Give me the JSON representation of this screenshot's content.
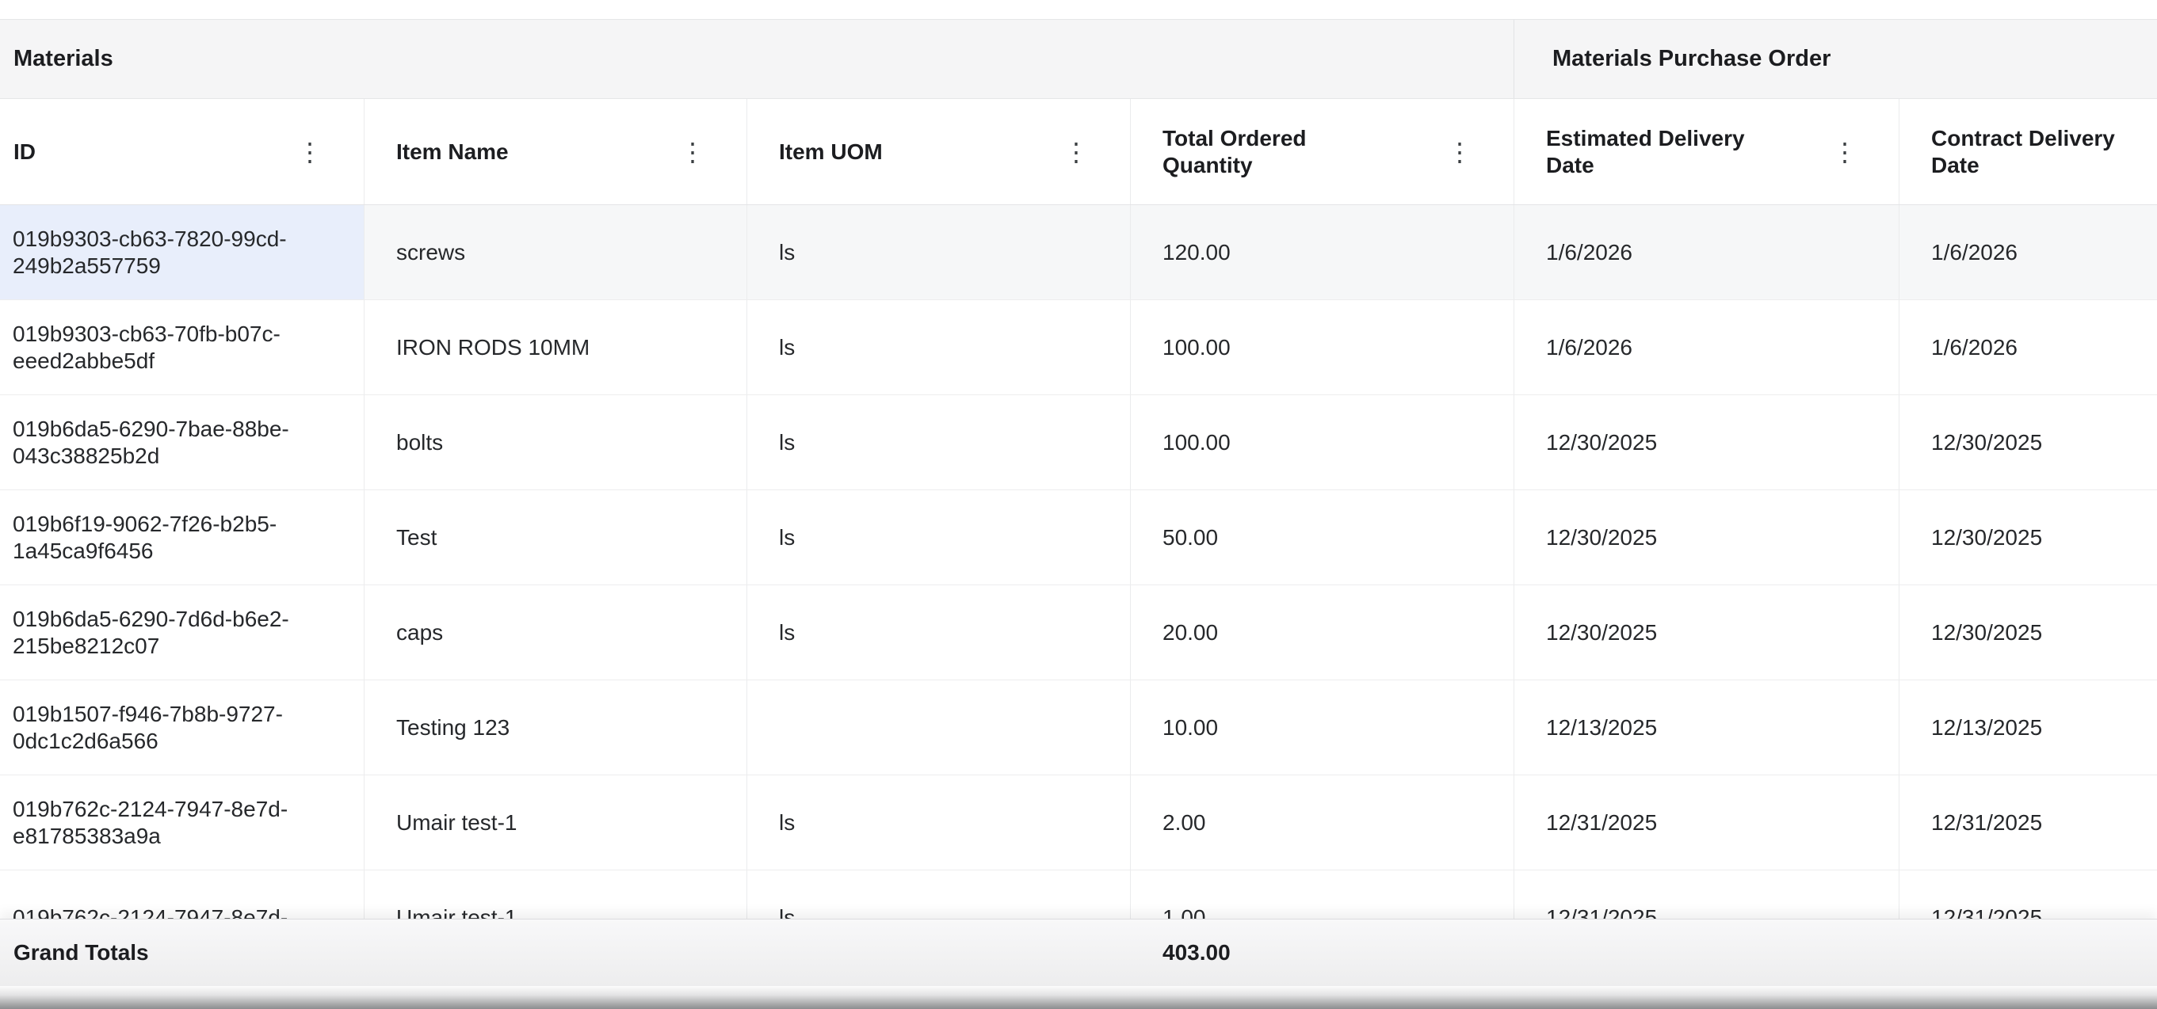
{
  "group_headers": {
    "materials": "Materials",
    "purchase_order": "Materials Purchase Order"
  },
  "icons": {
    "column_menu": "⋮"
  },
  "columns": [
    {
      "key": "id",
      "label": "ID",
      "menu": true
    },
    {
      "key": "item_name",
      "label": "Item Name",
      "menu": true
    },
    {
      "key": "item_uom",
      "label": "Item UOM",
      "menu": true
    },
    {
      "key": "total_ordered_quantity",
      "label": "Total Ordered Quantity",
      "menu": true
    },
    {
      "key": "estimated_delivery_date",
      "label": "Estimated Delivery Date",
      "menu": true
    },
    {
      "key": "contract_delivery_date",
      "label": "Contract Delivery Date",
      "menu": false
    }
  ],
  "row_keys": [
    "id",
    "item_name",
    "item_uom",
    "total_ordered_quantity",
    "estimated_delivery_date",
    "contract_delivery_date"
  ],
  "rows": [
    {
      "id": "019b9303-cb63-7820-99cd-249b2a557759",
      "item_name": "screws",
      "item_uom": "ls",
      "total_ordered_quantity": "120.00",
      "estimated_delivery_date": "1/6/2026",
      "contract_delivery_date": "1/6/2026",
      "highlighted": true,
      "selected_cell": "id"
    },
    {
      "id": "019b9303-cb63-70fb-b07c-eeed2abbe5df",
      "item_name": "IRON RODS 10MM",
      "item_uom": "ls",
      "total_ordered_quantity": "100.00",
      "estimated_delivery_date": "1/6/2026",
      "contract_delivery_date": "1/6/2026"
    },
    {
      "id": "019b6da5-6290-7bae-88be-043c38825b2d",
      "item_name": "bolts",
      "item_uom": "ls",
      "total_ordered_quantity": "100.00",
      "estimated_delivery_date": "12/30/2025",
      "contract_delivery_date": "12/30/2025"
    },
    {
      "id": "019b6f19-9062-7f26-b2b5-1a45ca9f6456",
      "item_name": "Test",
      "item_uom": "ls",
      "total_ordered_quantity": "50.00",
      "estimated_delivery_date": "12/30/2025",
      "contract_delivery_date": "12/30/2025"
    },
    {
      "id": "019b6da5-6290-7d6d-b6e2-215be8212c07",
      "item_name": "caps",
      "item_uom": "ls",
      "total_ordered_quantity": "20.00",
      "estimated_delivery_date": "12/30/2025",
      "contract_delivery_date": "12/30/2025"
    },
    {
      "id": "019b1507-f946-7b8b-9727-0dc1c2d6a566",
      "item_name": "Testing 123",
      "item_uom": "",
      "total_ordered_quantity": "10.00",
      "estimated_delivery_date": "12/13/2025",
      "contract_delivery_date": "12/13/2025"
    },
    {
      "id": "019b762c-2124-7947-8e7d-e81785383a9a",
      "item_name": "Umair test-1",
      "item_uom": "ls",
      "total_ordered_quantity": "2.00",
      "estimated_delivery_date": "12/31/2025",
      "contract_delivery_date": "12/31/2025"
    },
    {
      "id": "019b762c-2124-7947-8e7d-",
      "item_name": "Umair test-1",
      "item_uom": "ls",
      "total_ordered_quantity": "1.00",
      "estimated_delivery_date": "12/31/2025",
      "contract_delivery_date": "12/31/2025",
      "partial": true
    }
  ],
  "footer": {
    "label": "Grand Totals",
    "total": "403.00"
  }
}
